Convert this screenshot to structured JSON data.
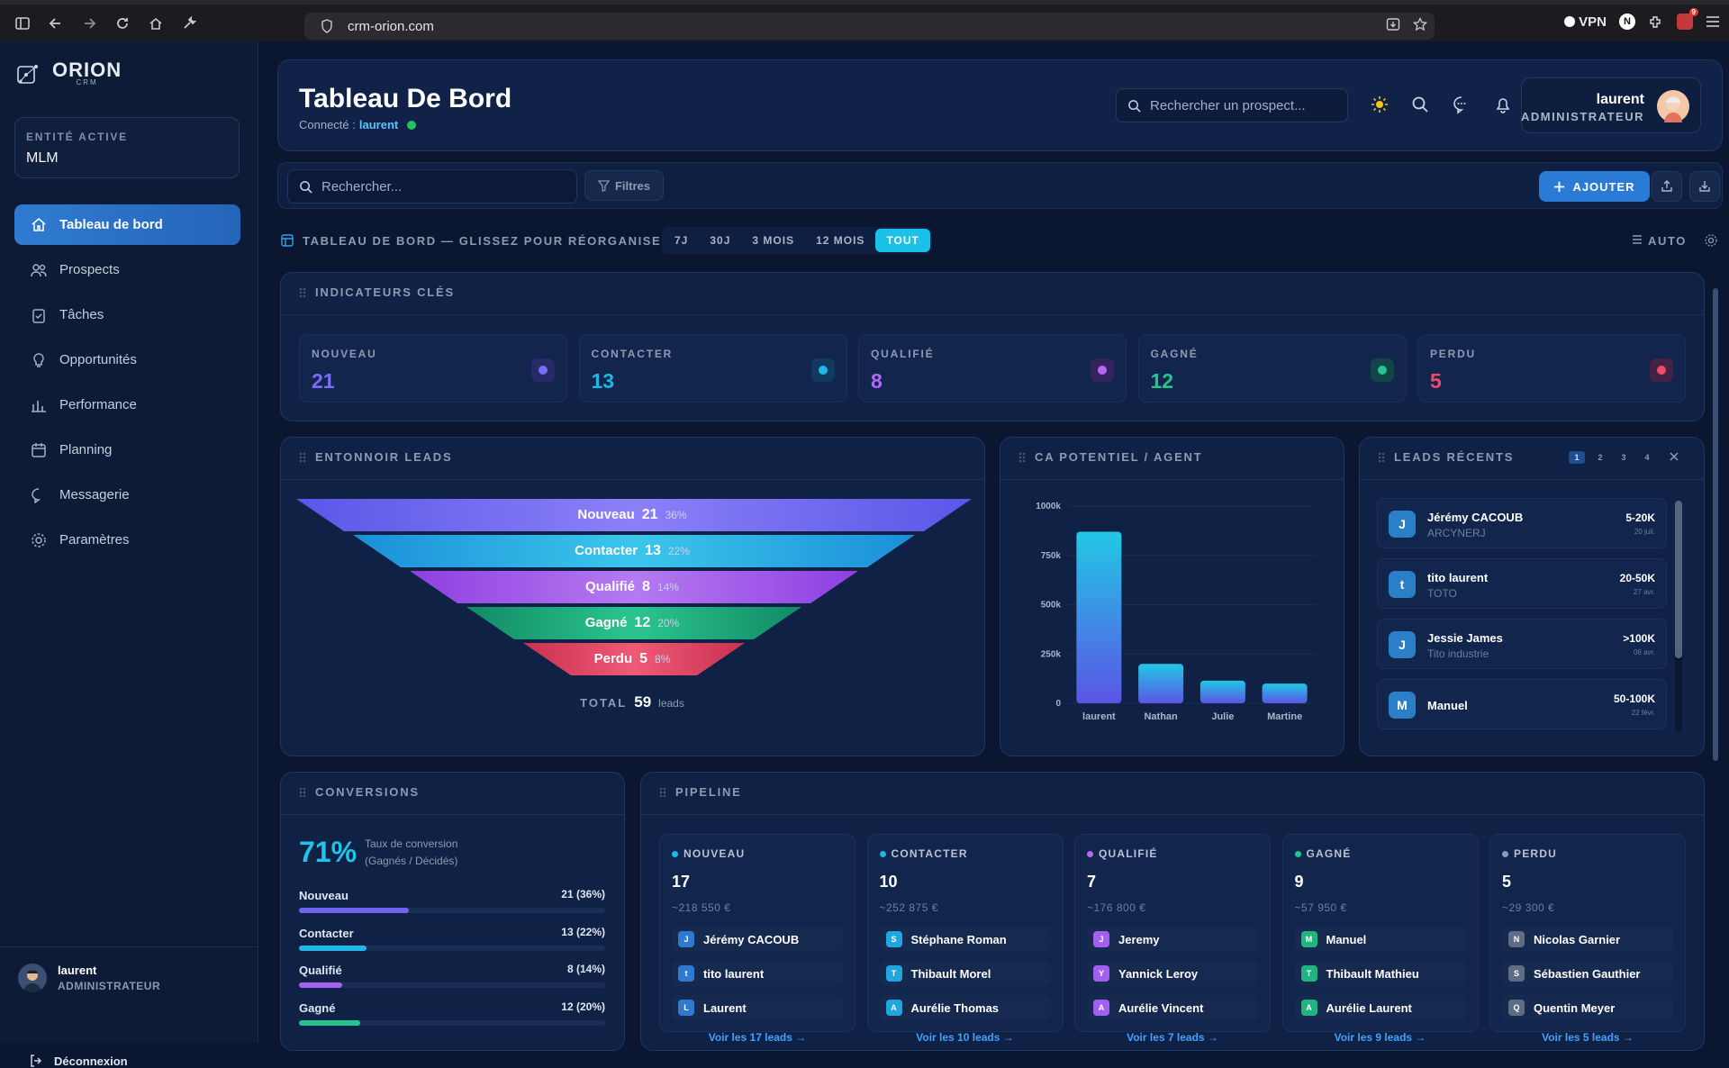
{
  "browser": {
    "url": "crm-orion.com",
    "vpn_label": "VPN",
    "badge": "9"
  },
  "brand": {
    "name": "ORION",
    "sub": "CRM"
  },
  "entity": {
    "label": "ENTITÉ ACTIVE",
    "value": "MLM"
  },
  "nav": [
    {
      "label": "Tableau de bord",
      "icon": "home-icon",
      "active": true
    },
    {
      "label": "Prospects",
      "icon": "users-icon"
    },
    {
      "label": "Tâches",
      "icon": "clipboard-icon"
    },
    {
      "label": "Opportunités",
      "icon": "lightbulb-icon"
    },
    {
      "label": "Performance",
      "icon": "bar-chart-icon"
    },
    {
      "label": "Planning",
      "icon": "calendar-icon"
    },
    {
      "label": "Messagerie",
      "icon": "chat-icon"
    },
    {
      "label": "Paramètres",
      "icon": "gear-icon"
    }
  ],
  "sidebar_user": {
    "name": "laurent",
    "role": "ADMINISTRATEUR"
  },
  "logout": "Déconnexion",
  "header": {
    "title": "Tableau De Bord",
    "connected_label": "Connecté :",
    "connected_user": "laurent",
    "search_placeholder": "Rechercher un prospect...",
    "user_name": "laurent",
    "user_role": "ADMINISTRATEUR"
  },
  "toolbar": {
    "search_placeholder": "Rechercher...",
    "filter_label": "Filtres",
    "add_label": "AJOUTER"
  },
  "period": {
    "label": "TABLEAU DE BORD — GLISSEZ POUR RÉORGANISER",
    "tabs": [
      "7J",
      "30J",
      "3 MOIS",
      "12 MOIS",
      "TOUT"
    ],
    "active": "TOUT",
    "auto": "AUTO"
  },
  "kpi": {
    "title": "INDICATEURS CLÉS",
    "items": [
      {
        "label": "NOUVEAU",
        "value": "21",
        "color": "#7c6cf6",
        "bg": "#262a66"
      },
      {
        "label": "CONTACTER",
        "value": "13",
        "color": "#1fb7e8",
        "bg": "#123a5e"
      },
      {
        "label": "QUALIFIÉ",
        "value": "8",
        "color": "#b567f5",
        "bg": "#35235f"
      },
      {
        "label": "GAGNÉ",
        "value": "12",
        "color": "#22c58b",
        "bg": "#134548"
      },
      {
        "label": "PERDU",
        "value": "5",
        "color": "#ef4a6c",
        "bg": "#452143"
      }
    ]
  },
  "funnel": {
    "title": "ENTONNOIR LEADS",
    "stages": [
      {
        "name": "Nouveau",
        "count": "21",
        "pct": "36%",
        "c1": "#5b57e8",
        "c2": "#8b80f6"
      },
      {
        "name": "Contacter",
        "count": "13",
        "pct": "22%",
        "c1": "#1a8fd8",
        "c2": "#3cc6ec"
      },
      {
        "name": "Qualifié",
        "count": "8",
        "pct": "14%",
        "c1": "#8e3fe0",
        "c2": "#b57af0"
      },
      {
        "name": "Gagné",
        "count": "12",
        "pct": "20%",
        "c1": "#128a64",
        "c2": "#2bc58f"
      },
      {
        "name": "Perdu",
        "count": "5",
        "pct": "8%",
        "c1": "#c8324f",
        "c2": "#ef5a77"
      }
    ],
    "total_label": "TOTAL",
    "total": "59",
    "total_unit": "leads"
  },
  "ca": {
    "title": "CA POTENTIEL / AGENT"
  },
  "chart_data": {
    "type": "bar",
    "categories": [
      "laurent",
      "Nathan",
      "Julie",
      "Martine"
    ],
    "values": [
      870000,
      200000,
      115000,
      100000
    ],
    "ylim": [
      0,
      1000000
    ],
    "ticks": [
      "0",
      "250k",
      "500k",
      "750k",
      "1000k"
    ],
    "tick_values": [
      0,
      250000,
      500000,
      750000,
      1000000
    ],
    "grid": true
  },
  "recent": {
    "title": "LEADS RÉCENTS",
    "pages": [
      "1",
      "2",
      "3",
      "4"
    ],
    "items": [
      {
        "initial": "J",
        "name": "Jérémy CACOUB",
        "company": "ARCYNERJ",
        "amount": "5-20K",
        "date": "20 juil."
      },
      {
        "initial": "t",
        "name": "tito laurent",
        "company": "TOTO",
        "amount": "20-50K",
        "date": "27 avr."
      },
      {
        "initial": "J",
        "name": "Jessie James",
        "company": "Tito industrie",
        "amount": ">100K",
        "date": "06 avr."
      },
      {
        "initial": "M",
        "name": "Manuel",
        "company": "",
        "amount": "50-100K",
        "date": "22 févr."
      }
    ]
  },
  "conversions": {
    "title": "CONVERSIONS",
    "rate": "71%",
    "rate_label": "Taux de conversion",
    "rate_sub": "(Gagnés / Décidés)",
    "rows": [
      {
        "name": "Nouveau",
        "value": "21",
        "pct": "(36%)",
        "fill": 0.36,
        "color": "#6f63ef"
      },
      {
        "name": "Contacter",
        "value": "13",
        "pct": "(22%)",
        "fill": 0.22,
        "color": "#1fb7e8"
      },
      {
        "name": "Qualifié",
        "value": "8",
        "pct": "(14%)",
        "fill": 0.14,
        "color": "#a660f0"
      },
      {
        "name": "Gagné",
        "value": "12",
        "pct": "(20%)",
        "fill": 0.2,
        "color": "#22c58b"
      }
    ]
  },
  "pipeline": {
    "title": "PIPELINE",
    "columns": [
      {
        "label": "NOUVEAU",
        "color": "#1fb7e8",
        "count": "17",
        "amount": "~218 550 €",
        "items": [
          {
            "i": "J",
            "name": "Jérémy CACOUB",
            "c": "#2e7ad1"
          },
          {
            "i": "t",
            "name": "tito laurent",
            "c": "#2e7ad1"
          },
          {
            "i": "L",
            "name": "Laurent",
            "c": "#2e7ad1"
          }
        ],
        "more": "Voir les 17 leads →"
      },
      {
        "label": "CONTACTER",
        "color": "#1fb7e8",
        "count": "10",
        "amount": "~252 875 €",
        "items": [
          {
            "i": "S",
            "name": "Stéphane Roman",
            "c": "#1fa7e0"
          },
          {
            "i": "T",
            "name": "Thibault Morel",
            "c": "#1fa7e0"
          },
          {
            "i": "A",
            "name": "Aurélie Thomas",
            "c": "#1fa7e0"
          }
        ],
        "more": "Voir les 10 leads →"
      },
      {
        "label": "QUALIFIÉ",
        "color": "#b567f5",
        "count": "7",
        "amount": "~176 800 €",
        "items": [
          {
            "i": "J",
            "name": "Jeremy",
            "c": "#a35ff0"
          },
          {
            "i": "Y",
            "name": "Yannick Leroy",
            "c": "#a35ff0"
          },
          {
            "i": "A",
            "name": "Aurélie Vincent",
            "c": "#a35ff0"
          }
        ],
        "more": "Voir les 7 leads →"
      },
      {
        "label": "GAGNÉ",
        "color": "#22c58b",
        "count": "9",
        "amount": "~57 950 €",
        "items": [
          {
            "i": "M",
            "name": "Manuel",
            "c": "#1fb57f"
          },
          {
            "i": "T",
            "name": "Thibault Mathieu",
            "c": "#1fb57f"
          },
          {
            "i": "A",
            "name": "Aurélie Laurent",
            "c": "#1fb57f"
          }
        ],
        "more": "Voir les 9 leads →"
      },
      {
        "label": "PERDU",
        "color": "#8d9bb2",
        "count": "5",
        "amount": "~29 300 €",
        "items": [
          {
            "i": "N",
            "name": "Nicolas Garnier",
            "c": "#5e6c84"
          },
          {
            "i": "S",
            "name": "Sébastien Gauthier",
            "c": "#5e6c84"
          },
          {
            "i": "Q",
            "name": "Quentin Meyer",
            "c": "#5e6c84"
          }
        ],
        "more": "Voir les 5 leads →"
      }
    ]
  }
}
